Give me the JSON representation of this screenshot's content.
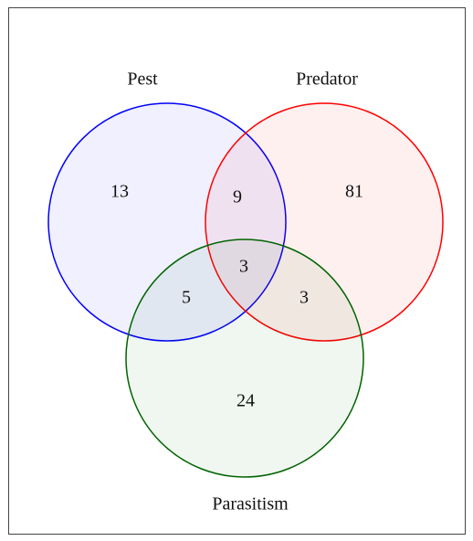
{
  "sets": [
    {
      "label": "Pest",
      "color": "#0000ff"
    },
    {
      "label": "Predator",
      "color": "#ff0000"
    },
    {
      "label": "Parasitism",
      "color": "#006400"
    }
  ],
  "regions": [
    13,
    9,
    81,
    3,
    5,
    3,
    24
  ]
}
